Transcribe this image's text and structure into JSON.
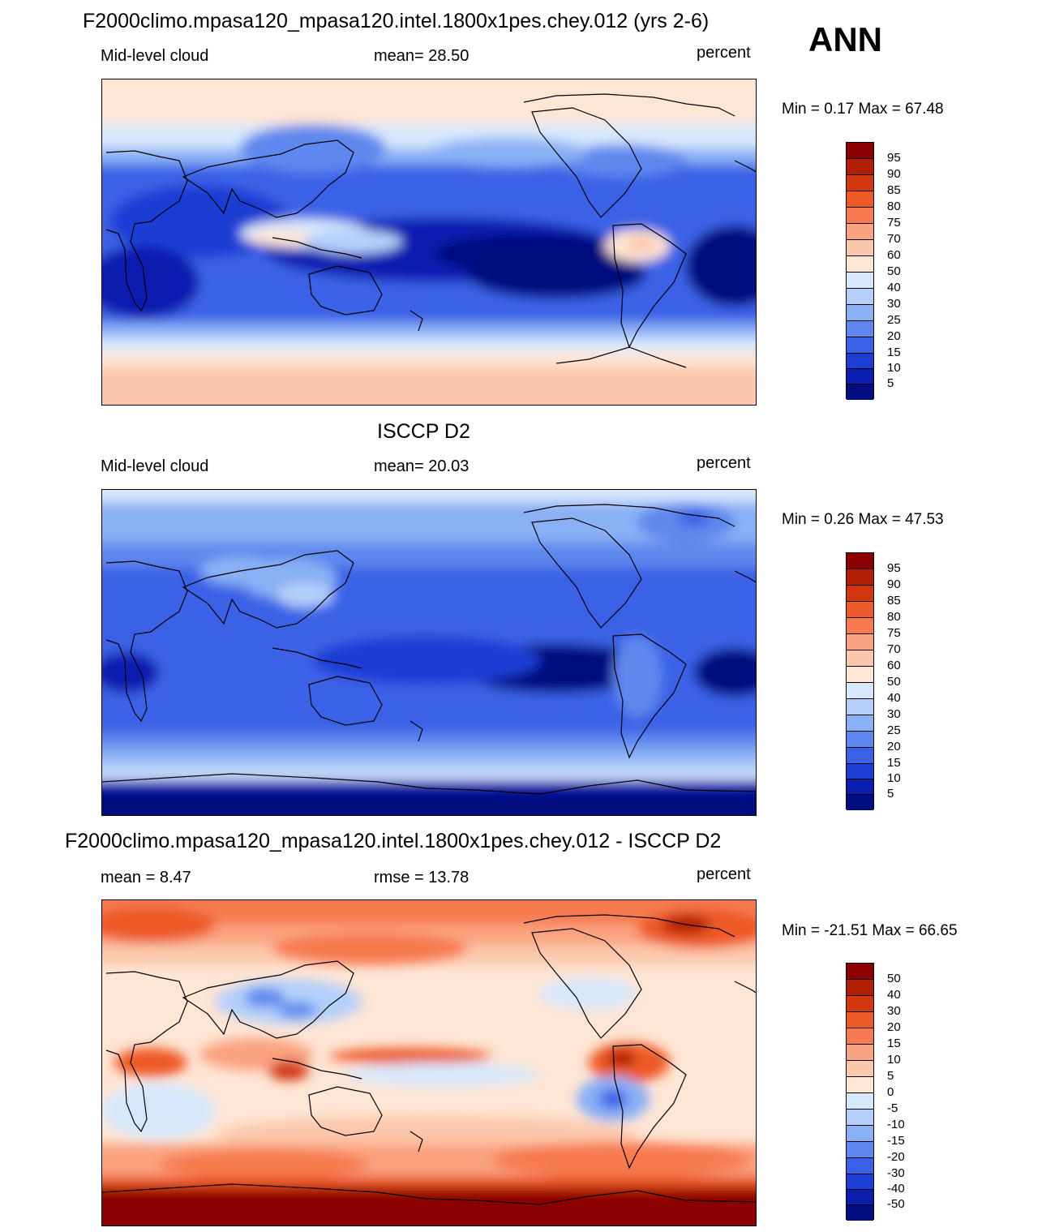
{
  "season": "ANN",
  "panels": [
    {
      "title": "F2000climo.mpasa120_mpasa120.intel.1800x1pes.chey.012 (yrs 2-6)",
      "left": "Mid-level cloud",
      "center": "mean=  28.50",
      "units": "percent",
      "minmax": "Min =   0.17 Max =  67.48",
      "levels": [
        "95",
        "90",
        "85",
        "80",
        "75",
        "70",
        "60",
        "50",
        "40",
        "30",
        "25",
        "20",
        "15",
        "10",
        "5"
      ],
      "colors": [
        "#8b0000",
        "#b01e05",
        "#d2360f",
        "#ee5a28",
        "#f77a50",
        "#faa380",
        "#fcc8ac",
        "#fee5d4",
        "#d7e8fc",
        "#b4d0fa",
        "#8ab0f5",
        "#5e88ee",
        "#3a62e6",
        "#1c3ed4",
        "#0a1fb0",
        "#000e80"
      ]
    },
    {
      "title": "ISCCP D2",
      "left": "Mid-level cloud",
      "center": "mean=  20.03",
      "units": "percent",
      "minmax": "Min =   0.26 Max =  47.53",
      "levels": [
        "95",
        "90",
        "85",
        "80",
        "75",
        "70",
        "60",
        "50",
        "40",
        "30",
        "25",
        "20",
        "15",
        "10",
        "5"
      ],
      "colors": [
        "#8b0000",
        "#b01e05",
        "#d2360f",
        "#ee5a28",
        "#f77a50",
        "#faa380",
        "#fcc8ac",
        "#fee5d4",
        "#d7e8fc",
        "#b4d0fa",
        "#8ab0f5",
        "#5e88ee",
        "#3a62e6",
        "#1c3ed4",
        "#0a1fb0",
        "#000e80"
      ]
    },
    {
      "title": "F2000climo.mpasa120_mpasa120.intel.1800x1pes.chey.012 - ISCCP D2",
      "left": "mean =   8.47",
      "center": "rmse =  13.78",
      "units": "percent",
      "minmax": "Min = -21.51 Max =  66.65",
      "levels": [
        "50",
        "40",
        "30",
        "20",
        "15",
        "10",
        "5",
        "0",
        "-5",
        "-10",
        "-15",
        "-20",
        "-30",
        "-40",
        "-50"
      ],
      "colors": [
        "#8b0000",
        "#b01e05",
        "#d2360f",
        "#ee5a28",
        "#f77a50",
        "#faa380",
        "#fcc8ac",
        "#fee5d4",
        "#d7e8fc",
        "#b4d0fa",
        "#8ab0f5",
        "#5e88ee",
        "#3a62e6",
        "#1c3ed4",
        "#0a1fb0",
        "#000e80"
      ]
    }
  ]
}
